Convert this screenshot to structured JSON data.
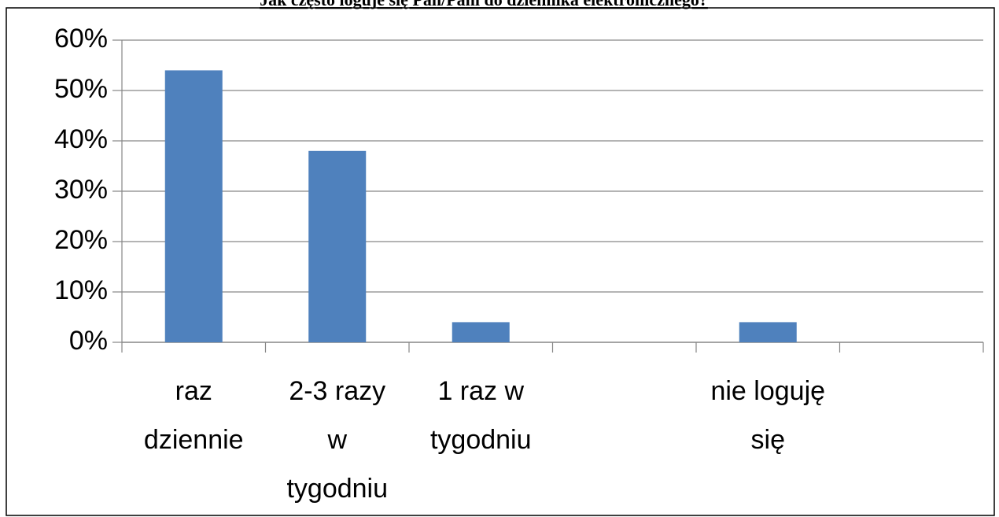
{
  "chart_data": {
    "type": "bar",
    "title": "Jak często loguje się Pan/Pani do dziennika elektronicznego?",
    "categories": [
      "raz dziennie",
      "2-3 razy w tygodniu",
      "1 raz w tygodniu",
      null,
      "nie loguję się",
      null
    ],
    "values": [
      54,
      38,
      4,
      null,
      4,
      null
    ],
    "color": "#4f81bd",
    "ylim": [
      0,
      60
    ],
    "yticks": [
      {
        "value": 0,
        "label": "0%"
      },
      {
        "value": 10,
        "label": "10%"
      },
      {
        "value": 20,
        "label": "20%"
      },
      {
        "value": 30,
        "label": "30%"
      },
      {
        "value": 40,
        "label": "40%"
      },
      {
        "value": 50,
        "label": "50%"
      },
      {
        "value": 60,
        "label": "60%"
      }
    ],
    "grid": true
  }
}
